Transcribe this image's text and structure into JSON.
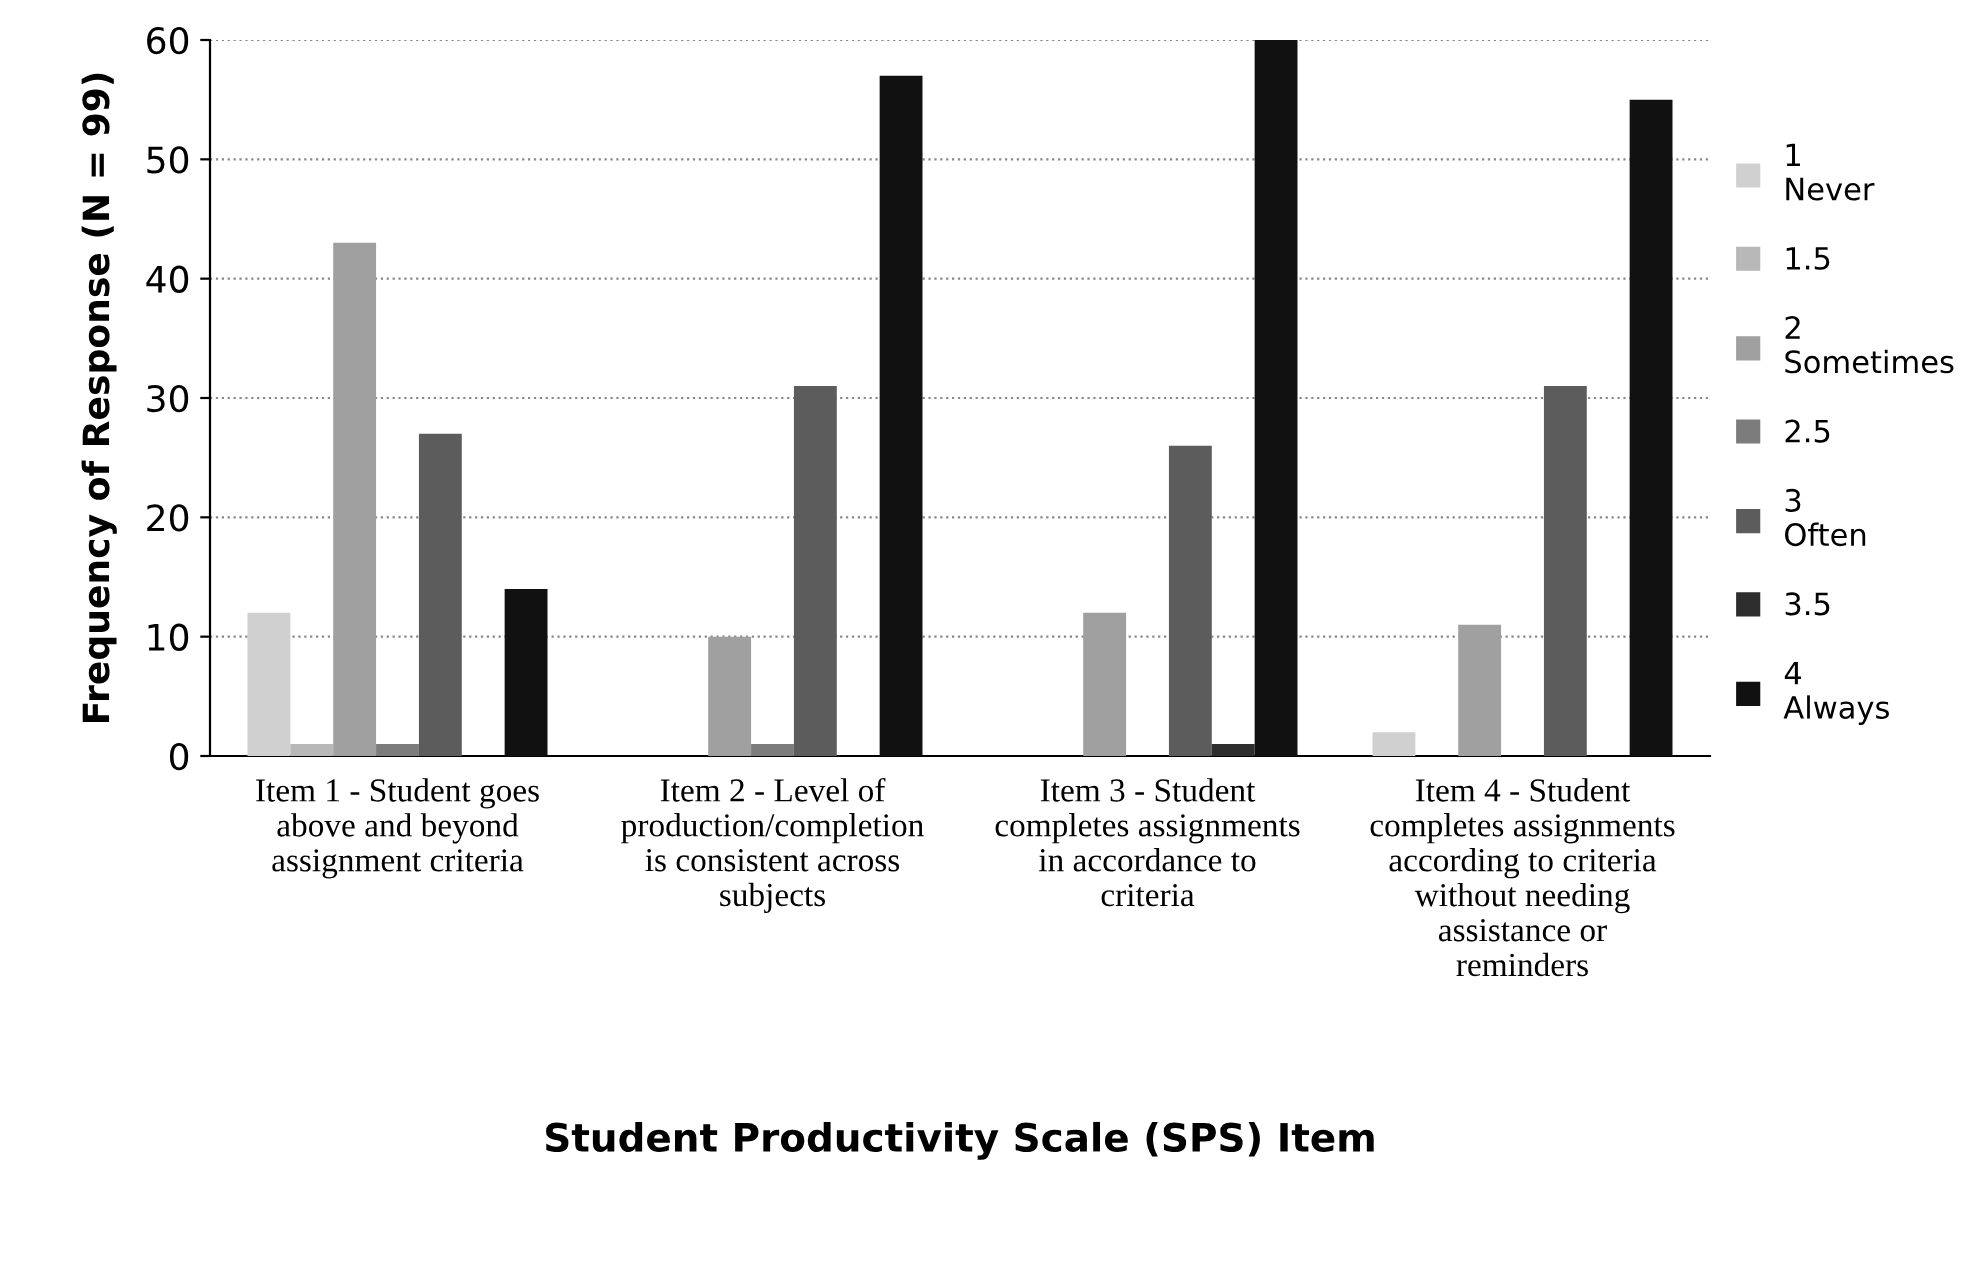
{
  "chart_data": {
    "type": "bar",
    "xlabel": "Student Productivity Scale (SPS) Item",
    "ylabel": "Frequency of Response (N = 99)",
    "categories": [
      "Item 1 - Student goes\nabove and beyond\nassignment criteria",
      "Item 2 - Level of\nproduction/completion\nis consistent across\nsubjects",
      "Item 3 - Student\ncompletes assignments\nin accordance to\ncriteria",
      "Item 4 - Student\ncompletes assignments\naccording to criteria\nwithout needing\nassistance or\nreminders"
    ],
    "series": [
      {
        "name": "1\nNever",
        "color": "#d0d0d0",
        "values": [
          12,
          0,
          0,
          2
        ]
      },
      {
        "name": "1.5",
        "color": "#b8b8b8",
        "values": [
          1,
          0,
          0,
          0
        ]
      },
      {
        "name": "2\nSometimes",
        "color": "#a0a0a0",
        "values": [
          43,
          10,
          12,
          11
        ]
      },
      {
        "name": "2.5",
        "color": "#7c7c7c",
        "values": [
          1,
          1,
          0,
          0
        ]
      },
      {
        "name": "3\nOften",
        "color": "#5c5c5c",
        "values": [
          27,
          31,
          26,
          31
        ]
      },
      {
        "name": "3.5",
        "color": "#2e2e2e",
        "values": [
          0,
          0,
          1,
          0
        ]
      },
      {
        "name": "4\nAlways",
        "color": "#111111",
        "values": [
          14,
          57,
          60,
          55
        ]
      }
    ],
    "ylim": [
      0,
      60
    ],
    "yticks": [
      0,
      10,
      20,
      30,
      40,
      50,
      60
    ],
    "grid": "y",
    "legend": "right"
  }
}
